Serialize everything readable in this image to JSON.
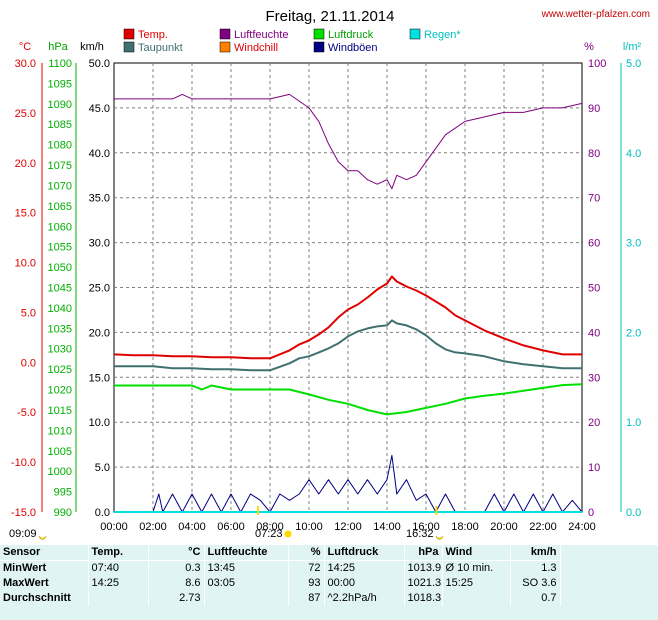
{
  "title": "Freitag, 21.11.2014",
  "source": "www.wetter-pfalzen.com",
  "axis_units": {
    "temp": "°C",
    "pressure": "hPa",
    "wind": "km/h",
    "humidity": "%",
    "rain": "l/m²"
  },
  "legend": [
    {
      "label": "Temp.",
      "color": "#e00000"
    },
    {
      "label": "Luftfeuchte",
      "color": "#800080"
    },
    {
      "label": "Luftdruck",
      "color": "#00e000"
    },
    {
      "label": "Regen*",
      "color": "#00e0e0"
    },
    {
      "label": "Taupunkt",
      "color": "#407070"
    },
    {
      "label": "Windchill",
      "color": "#ff8000"
    },
    {
      "label": "Windböen",
      "color": "#000080"
    }
  ],
  "sun_markers": [
    {
      "label": "09:09",
      "icon": "moon-icon"
    },
    {
      "label": "07:23",
      "icon": "sun-icon"
    },
    {
      "label": "16:32",
      "icon": "moon-icon"
    }
  ],
  "chart_data": {
    "type": "line",
    "title": "Freitag, 21.11.2014",
    "x_ticks": [
      "00:00",
      "02:00",
      "04:00",
      "06:00",
      "08:00",
      "10:00",
      "12:00",
      "14:00",
      "16:00",
      "18:00",
      "20:00",
      "22:00",
      "24:00"
    ],
    "axes": {
      "temp": {
        "range": [
          -15,
          30
        ],
        "ticks": [
          "30.0",
          "25.0",
          "20.0",
          "15.0",
          "10.0",
          "5.0",
          "0.0",
          "-5.0",
          "-10.0",
          "-15.0"
        ],
        "color": "#e00000"
      },
      "pressure": {
        "range": [
          990,
          1100
        ],
        "ticks": [
          "1100",
          "1095",
          "1090",
          "1085",
          "1080",
          "1075",
          "1070",
          "1065",
          "1060",
          "1055",
          "1050",
          "1045",
          "1040",
          "1035",
          "1030",
          "1025",
          "1020",
          "1015",
          "1010",
          "1005",
          "1000",
          "995",
          "990"
        ],
        "color": "#00b000"
      },
      "wind": {
        "range": [
          0,
          50
        ],
        "ticks": [
          "50.0",
          "45.0",
          "40.0",
          "35.0",
          "30.0",
          "25.0",
          "20.0",
          "15.0",
          "10.0",
          "5.0",
          "0.0"
        ],
        "color": "#000000"
      },
      "humidity": {
        "range": [
          0,
          100
        ],
        "ticks": [
          "100",
          "90",
          "80",
          "70",
          "60",
          "50",
          "40",
          "30",
          "20",
          "10",
          "0"
        ],
        "color": "#800080"
      },
      "rain": {
        "range": [
          0,
          5
        ],
        "ticks": [
          "5.0",
          "4.0",
          "3.0",
          "2.0",
          "1.0",
          "0.0"
        ],
        "color": "#00c0c0"
      }
    },
    "grid": true,
    "series": [
      {
        "name": "Temp.",
        "axis": "temp",
        "color": "#e00000",
        "x": [
          0,
          1,
          2,
          3,
          4,
          5,
          6,
          7,
          8,
          9,
          9.5,
          10,
          10.5,
          11,
          11.5,
          12,
          12.5,
          13,
          13.5,
          14,
          14.25,
          14.5,
          15,
          15.5,
          16,
          16.5,
          17,
          17.5,
          18,
          19,
          20,
          21,
          22,
          23,
          24
        ],
        "y": [
          0.8,
          0.7,
          0.7,
          0.6,
          0.6,
          0.5,
          0.5,
          0.4,
          0.4,
          1.2,
          1.8,
          2.2,
          2.8,
          3.5,
          4.5,
          5.3,
          5.8,
          6.5,
          7.3,
          7.9,
          8.6,
          8.1,
          7.6,
          7.2,
          6.7,
          6.1,
          5.5,
          4.7,
          4.2,
          3.2,
          2.4,
          1.7,
          1.2,
          0.8,
          0.8
        ]
      },
      {
        "name": "Taupunkt",
        "axis": "temp",
        "color": "#407070",
        "x": [
          0,
          1,
          2,
          3,
          4,
          5,
          6,
          7,
          8,
          9,
          9.5,
          10,
          10.5,
          11,
          11.5,
          12,
          12.5,
          13,
          13.5,
          14,
          14.25,
          14.5,
          15,
          15.5,
          16,
          16.5,
          17,
          17.5,
          18,
          19,
          20,
          21,
          22,
          23,
          24
        ],
        "y": [
          -0.4,
          -0.4,
          -0.4,
          -0.6,
          -0.6,
          -0.7,
          -0.7,
          -0.8,
          -0.8,
          -0.1,
          0.4,
          0.6,
          1.0,
          1.4,
          1.9,
          2.6,
          3.1,
          3.4,
          3.6,
          3.7,
          4.2,
          3.9,
          3.7,
          3.3,
          2.7,
          1.9,
          1.3,
          1.0,
          0.9,
          0.6,
          0.1,
          -0.2,
          -0.4,
          -0.6,
          -0.6
        ]
      },
      {
        "name": "Luftfeuchte",
        "axis": "humidity",
        "color": "#800080",
        "x": [
          0,
          3,
          3.5,
          4,
          5,
          6,
          7,
          8,
          9,
          10,
          10.5,
          11,
          11.5,
          12,
          12.5,
          13,
          13.5,
          14,
          14.25,
          14.5,
          15,
          15.5,
          16,
          16.5,
          17,
          18,
          19,
          20,
          21,
          22,
          23,
          24
        ],
        "y": [
          92,
          92,
          93,
          92,
          92,
          92,
          92,
          92,
          93,
          90,
          87,
          82,
          78,
          76,
          76,
          74,
          73,
          74,
          72,
          75,
          74,
          75,
          78,
          81,
          84,
          87,
          88,
          89,
          89,
          90,
          90,
          91
        ]
      },
      {
        "name": "Luftdruck",
        "axis": "pressure",
        "color": "#00e000",
        "x": [
          0,
          4,
          4.5,
          5,
          6,
          7,
          8,
          9,
          10,
          11,
          12,
          13,
          14,
          15,
          16,
          17,
          18,
          19,
          20,
          21,
          22,
          23,
          24
        ],
        "y": [
          1021,
          1021,
          1020,
          1021,
          1020,
          1020,
          1020,
          1020,
          1018.8,
          1017.5,
          1016.5,
          1015,
          1013.9,
          1014.5,
          1015.5,
          1016.5,
          1017.8,
          1018.5,
          1019,
          1019.7,
          1020.4,
          1021.1,
          1021.3
        ]
      },
      {
        "name": "Windböen",
        "axis": "wind",
        "color": "#000080",
        "x": [
          0,
          2,
          2.3,
          2.5,
          3,
          3.5,
          4,
          4.5,
          5,
          5.5,
          6,
          6.5,
          7,
          7.5,
          8,
          8.5,
          9,
          9.5,
          10,
          10.5,
          11,
          11.5,
          12,
          12.5,
          13,
          13.5,
          14,
          14.25,
          14.5,
          15,
          15.5,
          16,
          16.5,
          17,
          17.5,
          18,
          18.5,
          19,
          19.5,
          20,
          20.5,
          21,
          21.5,
          22,
          22.5,
          23,
          23.5,
          24
        ],
        "y": [
          0,
          0,
          2,
          0,
          2,
          0,
          2,
          0,
          2,
          0,
          2,
          0,
          2,
          1.3,
          0,
          2,
          1.3,
          2,
          3.6,
          2,
          3.6,
          2,
          3.6,
          2,
          3.6,
          2,
          3.6,
          6.3,
          2,
          3.6,
          1.3,
          2,
          0,
          2,
          0,
          0,
          0,
          0,
          2,
          0,
          2,
          0,
          2,
          0,
          2,
          0,
          1.3,
          0
        ]
      },
      {
        "name": "Regen*",
        "axis": "rain",
        "color": "#00e0e0",
        "x": [
          0,
          24
        ],
        "y": [
          0,
          0
        ]
      }
    ]
  },
  "stats": {
    "headers": {
      "sensor": "Sensor",
      "temp": "Temp.",
      "temp_unit": "°C",
      "hum": "Luftfeuchte",
      "hum_unit": "%",
      "press": "Luftdruck",
      "press_unit": "hPa",
      "wind": "Wind",
      "wind_unit": "km/h"
    },
    "rows": [
      {
        "label": "MinWert",
        "t_time": "07:40",
        "t_val": "0.3",
        "h_time": "13:45",
        "h_val": "72",
        "p_time": "14:25",
        "p_val": "1013.9",
        "w_time": "Ø 10 min.",
        "w_val": "1.3"
      },
      {
        "label": "MaxWert",
        "t_time": "14:25",
        "t_val": "8.6",
        "h_time": "03:05",
        "h_val": "93",
        "p_time": "00:00",
        "p_val": "1021.3",
        "w_time": "15:25",
        "w_val": "SO 3.6"
      },
      {
        "label": "Durchschnitt",
        "t_time": "",
        "t_val": "2.73",
        "h_time": "",
        "h_val": "87",
        "p_time": "^2.2hPa/h",
        "p_val": "1018.3",
        "w_time": "",
        "w_val": "0.7"
      }
    ]
  }
}
